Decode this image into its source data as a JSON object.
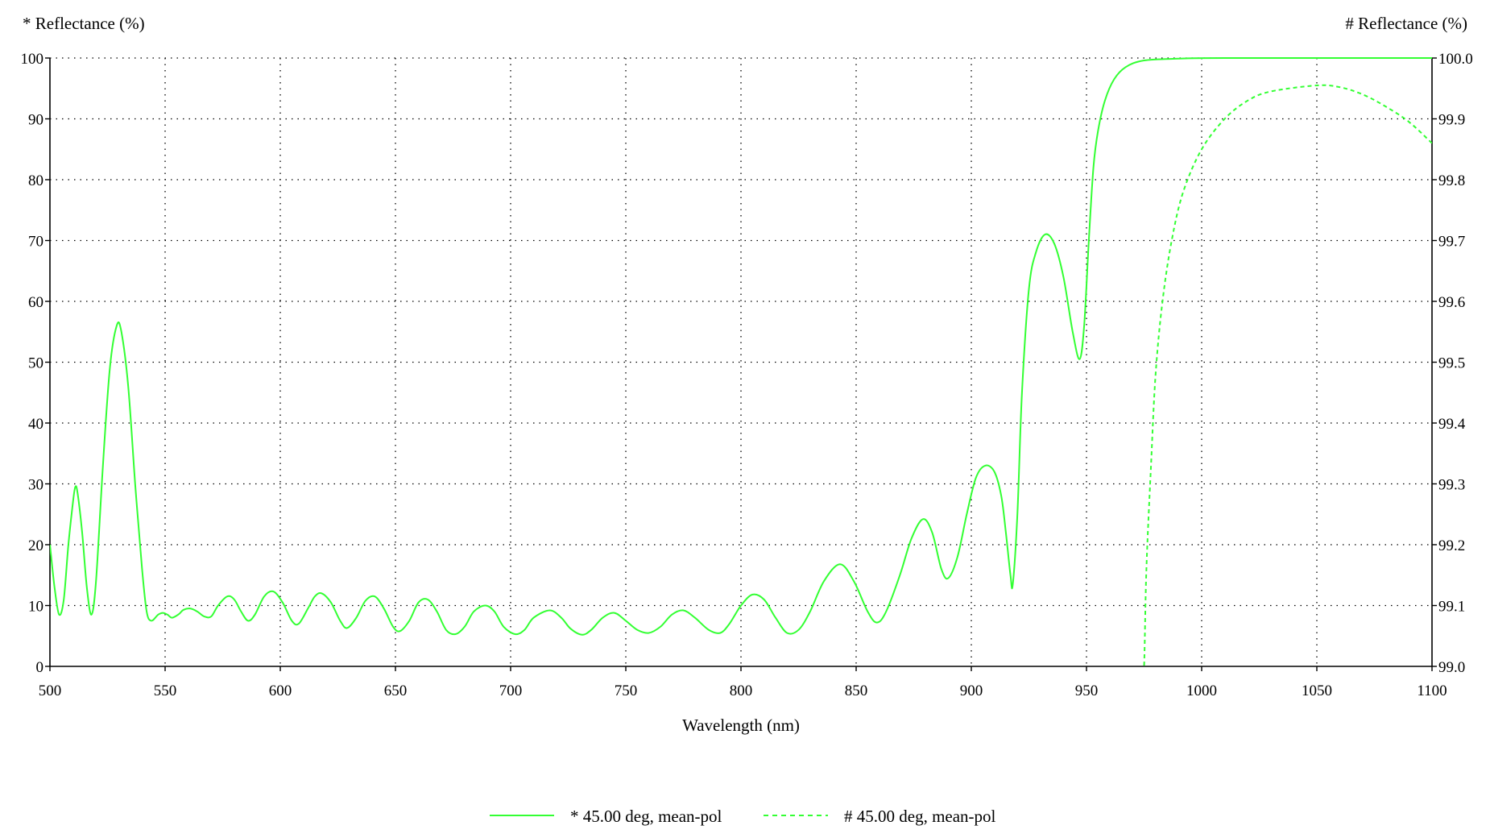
{
  "chart_data": {
    "type": "line",
    "left_axis_label": "* Reflectance (%)",
    "right_axis_label": "# Reflectance (%)",
    "xlabel": "Wavelength (nm)",
    "xlim": [
      500,
      1100
    ],
    "x_ticks": [
      "500",
      "550",
      "600",
      "650",
      "700",
      "750",
      "800",
      "850",
      "900",
      "950",
      "1000",
      "1050",
      "1100"
    ],
    "y_left_lim": [
      0,
      100
    ],
    "y_left_ticks": [
      "0",
      "10",
      "20",
      "30",
      "40",
      "50",
      "60",
      "70",
      "80",
      "90",
      "100"
    ],
    "y_right_lim": [
      99.0,
      100.0
    ],
    "y_right_ticks": [
      "99.0",
      "99.1",
      "99.2",
      "99.3",
      "99.4",
      "99.5",
      "99.6",
      "99.7",
      "99.8",
      "99.9",
      "100.0"
    ],
    "grid": true,
    "legend_position": "bottom-center",
    "series": [
      {
        "name": "* 45.00 deg, mean-pol",
        "axis": "left",
        "style": "solid",
        "color": "#33ff33",
        "points": [
          [
            500,
            20
          ],
          [
            502,
            13
          ],
          [
            504,
            8.5
          ],
          [
            506,
            11
          ],
          [
            508,
            20
          ],
          [
            510,
            27
          ],
          [
            511,
            29.5
          ],
          [
            512,
            28.5
          ],
          [
            514,
            22
          ],
          [
            516,
            13
          ],
          [
            518,
            8.5
          ],
          [
            520,
            14
          ],
          [
            523,
            33
          ],
          [
            526,
            49
          ],
          [
            529,
            56
          ],
          [
            531,
            55
          ],
          [
            534,
            46
          ],
          [
            537,
            30
          ],
          [
            540,
            16
          ],
          [
            542,
            9
          ],
          [
            544,
            7.5
          ],
          [
            547,
            8.5
          ],
          [
            549,
            8.8
          ],
          [
            551,
            8.5
          ],
          [
            553,
            8
          ],
          [
            556,
            8.6
          ],
          [
            558,
            9.3
          ],
          [
            561,
            9.5
          ],
          [
            564,
            9
          ],
          [
            567,
            8.2
          ],
          [
            570,
            8.2
          ],
          [
            573,
            10
          ],
          [
            577,
            11.5
          ],
          [
            580,
            11
          ],
          [
            583,
            9
          ],
          [
            586,
            7.5
          ],
          [
            589,
            8.5
          ],
          [
            593,
            11.5
          ],
          [
            597,
            12.3
          ],
          [
            601,
            10.5
          ],
          [
            605,
            7.5
          ],
          [
            608,
            7
          ],
          [
            612,
            9.5
          ],
          [
            615,
            11.5
          ],
          [
            618,
            12
          ],
          [
            622,
            10.5
          ],
          [
            626,
            7.5
          ],
          [
            629,
            6.3
          ],
          [
            633,
            8
          ],
          [
            637,
            10.8
          ],
          [
            641,
            11.5
          ],
          [
            645,
            9.5
          ],
          [
            649,
            6.5
          ],
          [
            652,
            5.8
          ],
          [
            656,
            7.5
          ],
          [
            660,
            10.5
          ],
          [
            664,
            11
          ],
          [
            668,
            9
          ],
          [
            672,
            6
          ],
          [
            676,
            5.3
          ],
          [
            680,
            6.5
          ],
          [
            684,
            9
          ],
          [
            689,
            10
          ],
          [
            693,
            9
          ],
          [
            697,
            6.5
          ],
          [
            702,
            5.3
          ],
          [
            706,
            6
          ],
          [
            710,
            8
          ],
          [
            717,
            9.2
          ],
          [
            722,
            8
          ],
          [
            726,
            6.2
          ],
          [
            731,
            5.2
          ],
          [
            735,
            6
          ],
          [
            740,
            8
          ],
          [
            745,
            8.8
          ],
          [
            750,
            7.5
          ],
          [
            755,
            6
          ],
          [
            760,
            5.5
          ],
          [
            765,
            6.5
          ],
          [
            770,
            8.5
          ],
          [
            775,
            9.2
          ],
          [
            780,
            8
          ],
          [
            786,
            6
          ],
          [
            791,
            5.5
          ],
          [
            795,
            7
          ],
          [
            800,
            10
          ],
          [
            805,
            11.8
          ],
          [
            810,
            11
          ],
          [
            815,
            8
          ],
          [
            820,
            5.5
          ],
          [
            825,
            6
          ],
          [
            830,
            9
          ],
          [
            836,
            14
          ],
          [
            843,
            16.8
          ],
          [
            849,
            14
          ],
          [
            855,
            9
          ],
          [
            859,
            7.2
          ],
          [
            863,
            9
          ],
          [
            869,
            15
          ],
          [
            874,
            21
          ],
          [
            879,
            24.2
          ],
          [
            883,
            22
          ],
          [
            887,
            16
          ],
          [
            890,
            14.5
          ],
          [
            894,
            18
          ],
          [
            898,
            25
          ],
          [
            902,
            31
          ],
          [
            906,
            33
          ],
          [
            910,
            32
          ],
          [
            913,
            28
          ],
          [
            915,
            22
          ],
          [
            917,
            15
          ],
          [
            918,
            13.5
          ],
          [
            920,
            25
          ],
          [
            922,
            45
          ],
          [
            925,
            62
          ],
          [
            928,
            68
          ],
          [
            932,
            71
          ],
          [
            936,
            69.5
          ],
          [
            940,
            64
          ],
          [
            944,
            55
          ],
          [
            947,
            50.5
          ],
          [
            949,
            56
          ],
          [
            951,
            70
          ],
          [
            953,
            82
          ],
          [
            955,
            88
          ],
          [
            958,
            93
          ],
          [
            962,
            96.5
          ],
          [
            967,
            98.5
          ],
          [
            975,
            99.6
          ],
          [
            990,
            99.9
          ],
          [
            1010,
            100
          ],
          [
            1100,
            100
          ]
        ]
      },
      {
        "name": "# 45.00 deg, mean-pol",
        "axis": "right",
        "style": "dashed",
        "color": "#33ff33",
        "points": [
          [
            974,
            98.98
          ],
          [
            975,
            99.0
          ],
          [
            976,
            99.16
          ],
          [
            978,
            99.33
          ],
          [
            980,
            99.48
          ],
          [
            983,
            99.6
          ],
          [
            987,
            99.7
          ],
          [
            992,
            99.78
          ],
          [
            1000,
            99.85
          ],
          [
            1010,
            99.9
          ],
          [
            1020,
            99.93
          ],
          [
            1030,
            99.945
          ],
          [
            1050,
            99.955
          ],
          [
            1060,
            99.952
          ],
          [
            1070,
            99.94
          ],
          [
            1080,
            99.92
          ],
          [
            1090,
            99.895
          ],
          [
            1100,
            99.86
          ]
        ]
      }
    ]
  }
}
